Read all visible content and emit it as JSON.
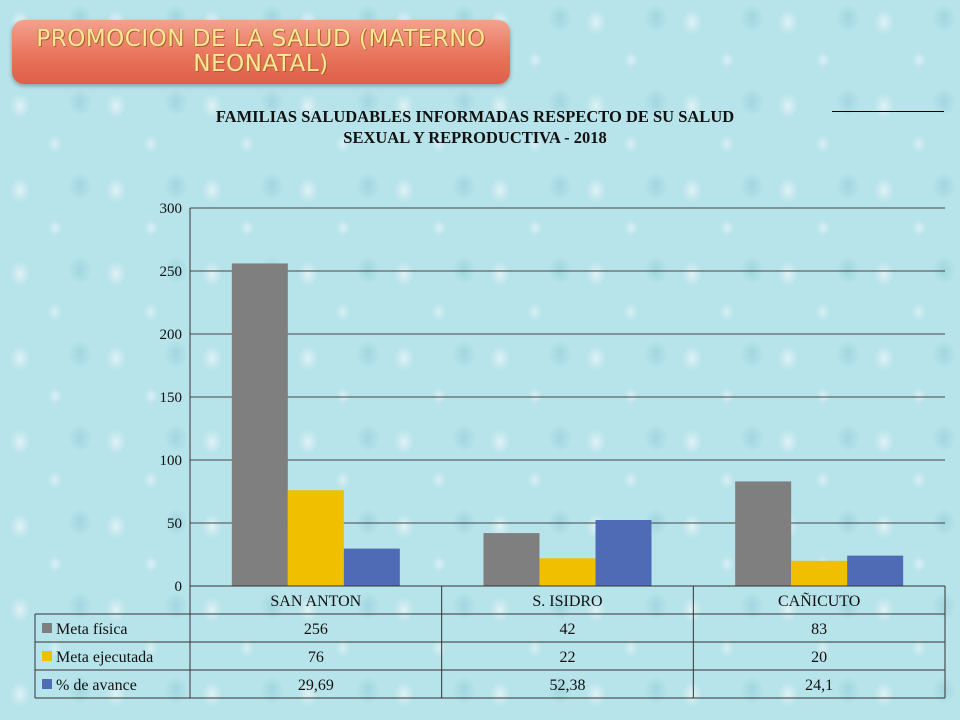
{
  "banner": {
    "title": "PROMOCION DE LA SALUD (MATERNO NEONATAL)"
  },
  "chart_data": {
    "type": "bar",
    "title": "FAMILIAS  SALUDABLES INFORMADAS  RESPECTO DE SU SALUD SEXUAL Y REPRODUCTIVA  - 2018",
    "title_lines": [
      "FAMILIAS  SALUDABLES INFORMADAS  RESPECTO DE SU SALUD",
      "SEXUAL Y REPRODUCTIVA  - 2018"
    ],
    "categories": [
      "SAN ANTON",
      "S. ISIDRO",
      "CAÑICUTO"
    ],
    "series": [
      {
        "name": "Meta física",
        "values": [
          256,
          42,
          83
        ],
        "labels": [
          "256",
          "42",
          "83"
        ],
        "color": "#7f7f7f"
      },
      {
        "name": "Meta ejecutada",
        "values": [
          76,
          22,
          20
        ],
        "labels": [
          "76",
          "22",
          "20"
        ],
        "color": "#f0c000"
      },
      {
        "name": "% de avance",
        "values": [
          29.69,
          52.38,
          24.1
        ],
        "labels": [
          "29,69",
          "52,38",
          "24,1"
        ],
        "color": "#4f6bb5"
      }
    ],
    "ylim": [
      0,
      300
    ],
    "yticks": [
      0,
      50,
      100,
      150,
      200,
      250,
      300
    ],
    "grid": true,
    "legend": "data table below chart"
  }
}
